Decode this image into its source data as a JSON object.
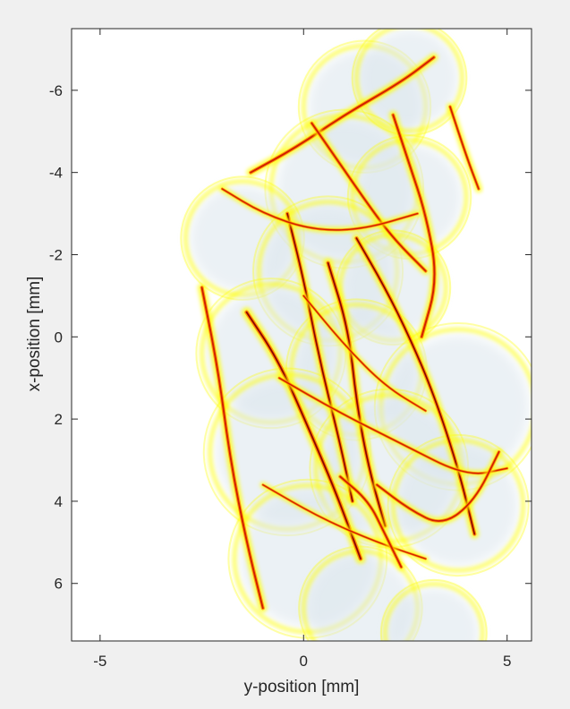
{
  "chart_data": {
    "type": "heatmap",
    "title": "",
    "xlabel": "y-position [mm]",
    "ylabel": "x-position [mm]",
    "xlim": [
      -5.7,
      5.6
    ],
    "ylim": [
      -7.5,
      7.4
    ],
    "y_reversed": true,
    "xticks": [
      -5,
      0,
      5
    ],
    "yticks": [
      -6,
      -4,
      -2,
      0,
      2,
      4,
      6
    ],
    "xtick_labels": [
      "-5",
      "0",
      "5"
    ],
    "ytick_labels": [
      "-6",
      "-4",
      "-2",
      "0",
      "2",
      "4",
      "6"
    ],
    "grid": false,
    "colormap": [
      "#dbe6ec",
      "#ffffff",
      "#ffff00",
      "#ff8c00",
      "#cc1100",
      "#5a0000"
    ],
    "background_color": "#ffffff",
    "figure_color": "#f0f0f0",
    "blobs": [
      {
        "x": 1.5,
        "y": -5.6,
        "r": 1.5
      },
      {
        "x": 2.6,
        "y": -6.3,
        "r": 1.3
      },
      {
        "x": 1.0,
        "y": -3.6,
        "r": 1.8
      },
      {
        "x": 2.6,
        "y": -3.4,
        "r": 1.4
      },
      {
        "x": -1.5,
        "y": -2.4,
        "r": 1.4
      },
      {
        "x": 0.6,
        "y": -1.6,
        "r": 1.7
      },
      {
        "x": 2.2,
        "y": -1.2,
        "r": 1.3
      },
      {
        "x": -0.8,
        "y": 0.4,
        "r": 1.7
      },
      {
        "x": 1.3,
        "y": 0.8,
        "r": 1.6
      },
      {
        "x": 3.8,
        "y": 1.7,
        "r": 1.9
      },
      {
        "x": -0.4,
        "y": 2.8,
        "r": 1.9
      },
      {
        "x": 2.1,
        "y": 3.2,
        "r": 1.8
      },
      {
        "x": 3.8,
        "y": 4.1,
        "r": 1.6
      },
      {
        "x": 0.1,
        "y": 5.4,
        "r": 1.8
      },
      {
        "x": 1.4,
        "y": 6.6,
        "r": 1.4
      },
      {
        "x": 3.2,
        "y": 7.2,
        "r": 1.2
      }
    ],
    "ridges": [
      {
        "points": [
          [
            -2.5,
            -1.2
          ],
          [
            -2.1,
            0.8
          ],
          [
            -1.8,
            3.0
          ],
          [
            -1.4,
            5.0
          ],
          [
            -1.0,
            6.6
          ]
        ],
        "level": 0.8
      },
      {
        "points": [
          [
            -1.4,
            -0.6
          ],
          [
            -0.6,
            0.6
          ],
          [
            0.2,
            2.4
          ],
          [
            0.8,
            3.8
          ],
          [
            1.4,
            5.4
          ]
        ],
        "level": 0.95
      },
      {
        "points": [
          [
            -0.4,
            -3.0
          ],
          [
            0.0,
            -1.4
          ],
          [
            0.4,
            0.6
          ],
          [
            0.9,
            2.6
          ],
          [
            1.2,
            4.0
          ]
        ],
        "level": 0.85
      },
      {
        "points": [
          [
            0.6,
            -1.8
          ],
          [
            1.1,
            -0.2
          ],
          [
            1.3,
            1.6
          ],
          [
            1.6,
            3.2
          ],
          [
            2.0,
            4.6
          ]
        ],
        "level": 0.9
      },
      {
        "points": [
          [
            1.3,
            -2.4
          ],
          [
            2.0,
            -1.2
          ],
          [
            2.6,
            0.0
          ],
          [
            3.2,
            1.4
          ],
          [
            3.8,
            3.2
          ],
          [
            4.2,
            4.8
          ]
        ],
        "level": 0.85
      },
      {
        "points": [
          [
            -1.3,
            -4.0
          ],
          [
            -0.2,
            -4.6
          ],
          [
            1.0,
            -5.4
          ],
          [
            2.4,
            -6.2
          ],
          [
            3.2,
            -6.8
          ]
        ],
        "level": 0.8
      },
      {
        "points": [
          [
            0.2,
            -5.2
          ],
          [
            0.9,
            -4.2
          ],
          [
            1.6,
            -3.2
          ],
          [
            2.2,
            -2.4
          ],
          [
            3.0,
            -1.6
          ]
        ],
        "level": 0.75
      },
      {
        "points": [
          [
            2.2,
            -5.4
          ],
          [
            2.6,
            -4.2
          ],
          [
            3.0,
            -3.0
          ],
          [
            3.3,
            -1.4
          ],
          [
            2.9,
            0.0
          ]
        ],
        "level": 0.8
      },
      {
        "points": [
          [
            3.6,
            -5.6
          ],
          [
            4.0,
            -4.4
          ],
          [
            4.3,
            -3.6
          ]
        ],
        "level": 0.7
      },
      {
        "points": [
          [
            -0.6,
            1.0
          ],
          [
            0.8,
            1.8
          ],
          [
            2.4,
            2.6
          ],
          [
            4.0,
            3.4
          ],
          [
            5.0,
            3.2
          ]
        ],
        "level": 0.6
      },
      {
        "points": [
          [
            1.8,
            3.6
          ],
          [
            2.6,
            4.2
          ],
          [
            3.4,
            4.6
          ],
          [
            4.2,
            4.0
          ],
          [
            4.8,
            2.8
          ]
        ],
        "level": 0.7
      },
      {
        "points": [
          [
            -2.0,
            -3.6
          ],
          [
            -1.0,
            -3.0
          ],
          [
            0.2,
            -2.6
          ],
          [
            1.4,
            -2.6
          ],
          [
            2.8,
            -3.0
          ]
        ],
        "level": 0.6
      },
      {
        "points": [
          [
            0.0,
            -1.0
          ],
          [
            1.0,
            0.2
          ],
          [
            2.0,
            1.2
          ],
          [
            3.0,
            1.8
          ]
        ],
        "level": 0.55
      },
      {
        "points": [
          [
            -1.0,
            3.6
          ],
          [
            0.4,
            4.4
          ],
          [
            1.8,
            5.0
          ],
          [
            3.0,
            5.4
          ]
        ],
        "level": 0.55
      },
      {
        "points": [
          [
            0.9,
            3.4
          ],
          [
            1.6,
            4.0
          ],
          [
            2.0,
            4.8
          ],
          [
            2.4,
            5.6
          ]
        ],
        "level": 0.75
      }
    ]
  }
}
